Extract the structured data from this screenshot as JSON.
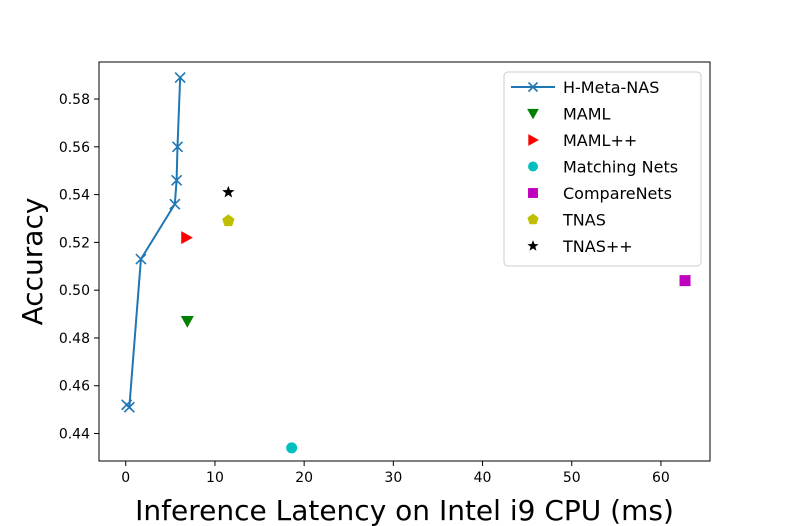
{
  "chart_data": {
    "type": "scatter",
    "title": "",
    "xlabel": "Inference Latency on Intel i9 CPU (ms)",
    "ylabel": "Accuracy",
    "xlim": [
      -3,
      65.5
    ],
    "ylim": [
      0.4285,
      0.5955
    ],
    "xticks": [
      0,
      10,
      20,
      30,
      40,
      50,
      60
    ],
    "xtick_labels": [
      "0",
      "10",
      "20",
      "30",
      "40",
      "50",
      "60"
    ],
    "yticks": [
      0.44,
      0.46,
      0.48,
      0.5,
      0.52,
      0.54,
      0.56,
      0.58
    ],
    "ytick_labels": [
      "0.44",
      "0.46",
      "0.48",
      "0.50",
      "0.52",
      "0.54",
      "0.56",
      "0.58"
    ],
    "grid": false,
    "legend_position": "top-right",
    "series": [
      {
        "name": "H-Meta-NAS",
        "marker": "x",
        "line": true,
        "color": "#1f77b4",
        "points": [
          [
            0.1,
            0.452
          ],
          [
            0.4,
            0.451
          ],
          [
            1.7,
            0.513
          ],
          [
            5.5,
            0.536
          ],
          [
            5.7,
            0.546
          ],
          [
            5.8,
            0.56
          ],
          [
            6.1,
            0.589
          ]
        ]
      },
      {
        "name": "MAML",
        "marker": "triangle-down",
        "line": false,
        "color": "#008000",
        "points": [
          [
            6.9,
            0.487
          ]
        ]
      },
      {
        "name": "MAML++",
        "marker": "triangle-right",
        "line": false,
        "color": "#ff0000",
        "points": [
          [
            6.8,
            0.522
          ]
        ]
      },
      {
        "name": "Matching Nets",
        "marker": "circle",
        "line": false,
        "color": "#00bfbf",
        "points": [
          [
            18.6,
            0.434
          ]
        ]
      },
      {
        "name": "CompareNets",
        "marker": "square",
        "line": false,
        "color": "#bf00bf",
        "points": [
          [
            62.7,
            0.504
          ]
        ]
      },
      {
        "name": "TNAS",
        "marker": "pentagon",
        "line": false,
        "color": "#bfbf00",
        "points": [
          [
            11.5,
            0.529
          ]
        ]
      },
      {
        "name": "TNAS++",
        "marker": "star",
        "line": false,
        "color": "#000000",
        "points": [
          [
            11.5,
            0.541
          ]
        ]
      }
    ]
  }
}
